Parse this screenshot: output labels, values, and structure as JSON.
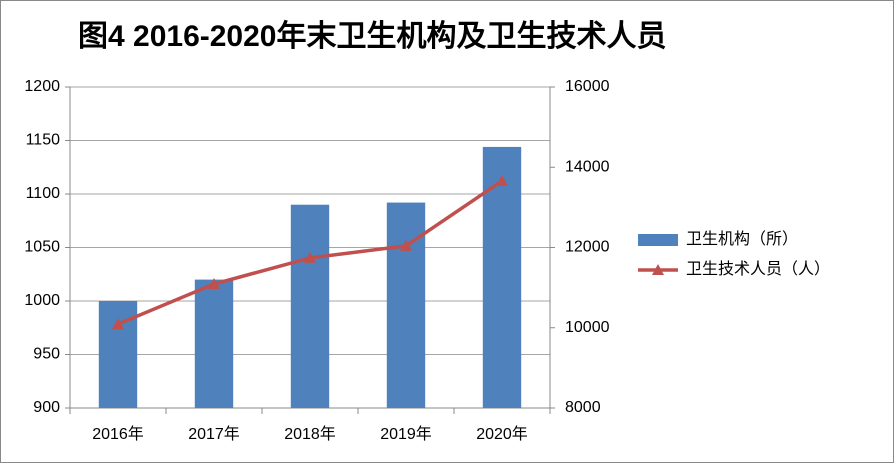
{
  "chart_data": {
    "type": "bar",
    "title": "图4  2016-2020年末卫生机构及卫生技术人员",
    "categories": [
      "2016年",
      "2017年",
      "2018年",
      "2019年",
      "2020年"
    ],
    "series": [
      {
        "name": "卫生机构（所）",
        "type": "bar",
        "color": "#4f81bd",
        "values": [
          1000,
          1020,
          1090,
          1092,
          1144
        ]
      },
      {
        "name": "卫生技术人员（人）",
        "type": "line",
        "axis": "y2",
        "color": "#c0504d",
        "values": [
          10090,
          11090,
          11740,
          12040,
          13660
        ]
      }
    ],
    "ylim": [
      900,
      1200
    ],
    "yticks": [
      900,
      950,
      1000,
      1050,
      1100,
      1150,
      1200
    ],
    "y2lim": [
      8000,
      16000
    ],
    "y2ticks": [
      8000,
      10000,
      12000,
      14000,
      16000
    ],
    "grid": true,
    "legend": "right"
  }
}
